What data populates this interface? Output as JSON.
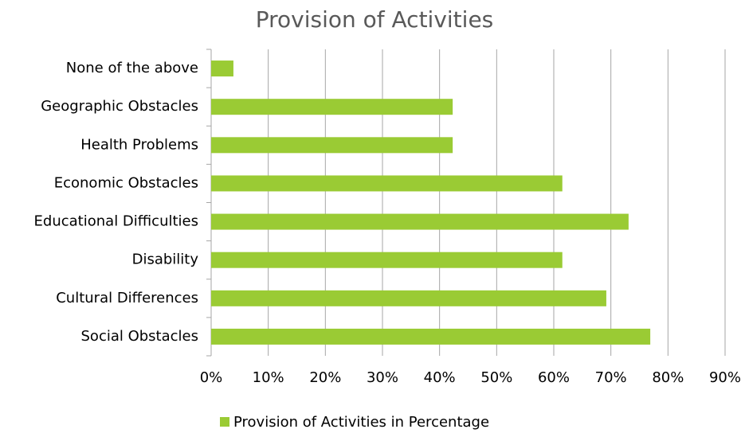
{
  "chart_data": {
    "type": "bar",
    "orientation": "horizontal",
    "title": "Provision of Activities",
    "categories": [
      "None of the above",
      "Geographic Obstacles",
      "Health Problems",
      "Economic Obstacles",
      "Educational Difficulties",
      "Disability",
      "Cultural Differences",
      "Social Obstacles"
    ],
    "series": [
      {
        "name": "Provision of Activities in Percentage",
        "color": "#9acb34",
        "values": [
          3.9,
          42.3,
          42.3,
          61.5,
          73.1,
          61.5,
          69.2,
          76.9
        ]
      }
    ],
    "xlim": [
      0,
      90
    ],
    "xticks": [
      {
        "value": 0,
        "label": "0%"
      },
      {
        "value": 10,
        "label": "10%"
      },
      {
        "value": 20,
        "label": "20%"
      },
      {
        "value": 30,
        "label": "30%"
      },
      {
        "value": 40,
        "label": "40%"
      },
      {
        "value": 50,
        "label": "50%"
      },
      {
        "value": 60,
        "label": "60%"
      },
      {
        "value": 70,
        "label": "70%"
      },
      {
        "value": 80,
        "label": "80%"
      },
      {
        "value": 90,
        "label": "90%"
      }
    ],
    "grid": true,
    "legend": "bottom"
  }
}
